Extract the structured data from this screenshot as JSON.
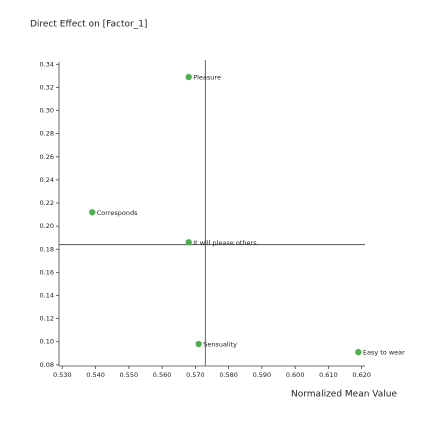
{
  "chart_data": {
    "type": "scatter",
    "y_axis_title": "Direct Effect on [Factor_1]",
    "x_axis_title": "Normalized Mean Value",
    "color": "#4caf50",
    "points": [
      {
        "label": "Pleasure",
        "x": 0.568,
        "y": 0.329
      },
      {
        "label": "Corresponds",
        "x": 0.539,
        "y": 0.212
      },
      {
        "label": "It will please others",
        "x": 0.568,
        "y": 0.186
      },
      {
        "label": "Sensuality",
        "x": 0.571,
        "y": 0.098
      },
      {
        "label": "Easy to wear",
        "x": 0.619,
        "y": 0.091
      }
    ],
    "reference_x": 0.573,
    "reference_y": 0.184,
    "xlim": [
      0.529,
      0.621
    ],
    "ylim": [
      0.079,
      0.342
    ],
    "xticks": [
      {
        "value": 0.53,
        "label": "0.530"
      },
      {
        "value": 0.54,
        "label": "0.540"
      },
      {
        "value": 0.55,
        "label": "0.550"
      },
      {
        "value": 0.56,
        "label": "0.560"
      },
      {
        "value": 0.57,
        "label": "0.570"
      },
      {
        "value": 0.58,
        "label": "0.580"
      },
      {
        "value": 0.59,
        "label": "0.590"
      },
      {
        "value": 0.6,
        "label": "0.600"
      },
      {
        "value": 0.61,
        "label": "0.610"
      },
      {
        "value": 0.62,
        "label": "0.620"
      }
    ],
    "yticks": [
      0.34,
      0.32,
      {
        "value": 0.3,
        "label": "0.30"
      },
      0.28,
      0.26,
      0.24,
      0.22,
      {
        "value": 0.2,
        "label": "0.20"
      },
      0.18,
      0.16,
      0.14,
      0.12,
      {
        "value": 0.1,
        "label": "0.10"
      },
      0.08
    ]
  }
}
